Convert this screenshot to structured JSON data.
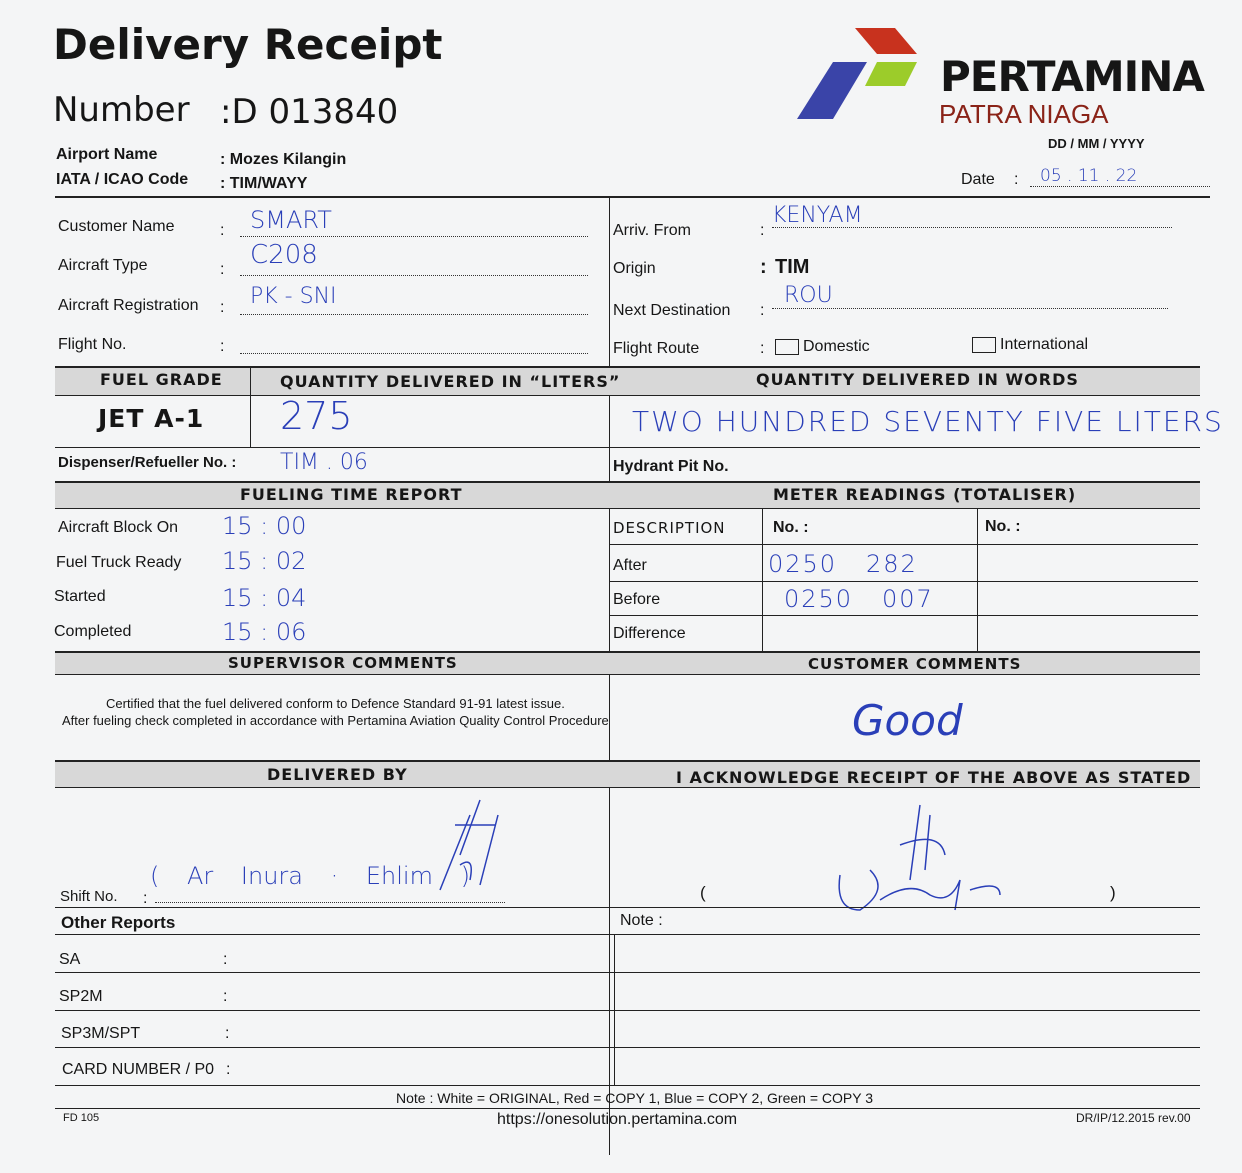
{
  "header": {
    "title": "Delivery Receipt",
    "number_label": "Number",
    "number_value": ":D 013840",
    "airport_label": "Airport Name",
    "airport_value": ": Mozes Kilangin",
    "code_label": "IATA / ICAO Code",
    "code_value": ": TIM/WAYY"
  },
  "brand": {
    "name": "PERTAMINA",
    "sub": "PATRA NIAGA",
    "colors": {
      "red": "#c8321e",
      "blue": "#3a44a8",
      "green": "#9ccc2a"
    }
  },
  "date": {
    "format": "DD  /  MM  /  YYYY",
    "label": "Date",
    "value": "05 . 11 . 22"
  },
  "left_fields": [
    {
      "label": "Customer Name",
      "value": "SMART"
    },
    {
      "label": "Aircraft Type",
      "value": "C208"
    },
    {
      "label": "Aircraft Registration",
      "value": "PK - SNI"
    },
    {
      "label": "Flight No.",
      "value": ""
    }
  ],
  "right_fields": [
    {
      "label": "Arriv. From",
      "value": "KENYAM"
    },
    {
      "label": "Origin",
      "value": "TIM"
    },
    {
      "label": "Next Destination",
      "value": "ROU"
    }
  ],
  "flight_route": {
    "label": "Flight  Route",
    "domestic": "Domestic",
    "international": "International",
    "selected": "Domestic"
  },
  "fuel": {
    "grade_header": "FUEL GRADE",
    "liters_header": "QUANTITY DELIVERED IN “LITERS”",
    "words_header": "QUANTITY DELIVERED IN WORDS",
    "grade": "JET A-1",
    "liters": "275",
    "words": "TWO HUNDRED SEVENTY FIVE LITERS"
  },
  "dispenser": {
    "label": "Dispenser/Refueller No.  :",
    "value": "TIM . 06"
  },
  "hydrant": {
    "label": "Hydrant Pit No."
  },
  "fueling_time": {
    "header": "FUELING TIME REPORT",
    "rows": [
      {
        "label": "Aircraft Block On",
        "value": "15 : 00"
      },
      {
        "label": "Fuel Truck Ready",
        "value": "15 : 02"
      },
      {
        "label": "Started",
        "value": "15 : 04"
      },
      {
        "label": "Completed",
        "value": "15 : 06"
      }
    ]
  },
  "meter": {
    "header": "METER READINGS (TOTALISER)",
    "desc": "DESCRIPTION",
    "no1": "No. :",
    "no2": "No. :",
    "rows": [
      {
        "label": "After",
        "value": "0250   282"
      },
      {
        "label": "Before",
        "value": "0250   007"
      },
      {
        "label": "Difference",
        "value": ""
      }
    ]
  },
  "comments": {
    "supervisor_header": "SUPERVISOR  COMMENTS",
    "customer_header": "CUSTOMER  COMMENTS",
    "supervisor_line1": "Certified that the fuel delivered conform to Defence Standard 91-91 latest issue.",
    "supervisor_line2": "After fueling check completed in accordance with Pertamina Aviation Quality Control Procedure",
    "customer_value": "Good"
  },
  "delivered": {
    "header": "DELIVERED  BY",
    "shift_label": "Shift No.",
    "name": "( Ar  Inura · Ehlim )",
    "ack_header": "I ACKNOWLEDGE RECEIPT OF THE ABOVE AS STATED",
    "ack_paren_open": "(",
    "ack_paren_close": ")"
  },
  "other": {
    "header": "Other Reports",
    "note_label": "Note :",
    "rows": [
      "SA",
      "SP2M",
      "SP3M/SPT",
      "CARD NUMBER / P0"
    ]
  },
  "footer": {
    "note": "Note :   White = ORIGINAL, Red = COPY 1,  Blue = COPY 2,  Green = COPY 3",
    "form": "FD 105",
    "url": "https://onesolution.pertamina.com",
    "rev": "DR/IP/12.2015 rev.00"
  }
}
